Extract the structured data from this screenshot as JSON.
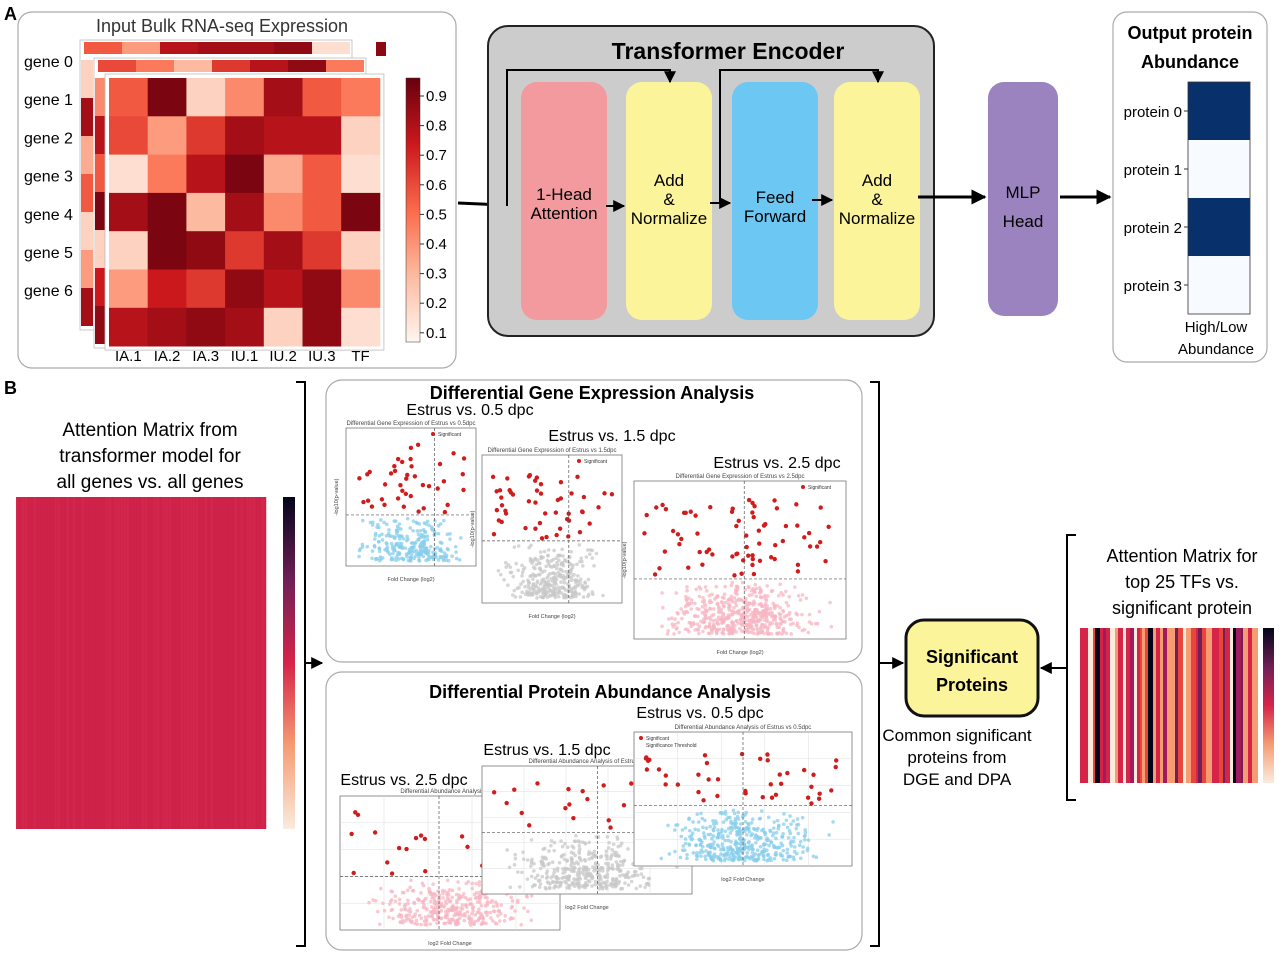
{
  "panel_a": {
    "label": "A",
    "heatmap": {
      "title": "Input Bulk RNA-seq Expression",
      "genes": [
        "gene 0",
        "gene 1",
        "gene 2",
        "gene 3",
        "gene 4",
        "gene 5",
        "gene 6"
      ],
      "columns": [
        "IA.1",
        "IA.2",
        "IA.3",
        "IU.1",
        "IU.2",
        "IU.3",
        "TF"
      ],
      "colorbar_ticks": [
        "0.9",
        "0.8",
        "0.7",
        "0.6",
        "0.5",
        "0.4",
        "0.3",
        "0.2",
        "0.1"
      ],
      "values": [
        [
          0.55,
          0.95,
          0.15,
          0.4,
          0.85,
          0.55,
          0.45
        ],
        [
          0.6,
          0.35,
          0.65,
          0.85,
          0.8,
          0.8,
          0.15
        ],
        [
          0.1,
          0.45,
          0.8,
          0.95,
          0.3,
          0.55,
          0.1
        ],
        [
          0.85,
          0.95,
          0.25,
          0.85,
          0.4,
          0.55,
          0.95
        ],
        [
          0.15,
          0.95,
          0.9,
          0.65,
          0.85,
          0.65,
          0.15
        ],
        [
          0.35,
          0.75,
          0.65,
          0.9,
          0.8,
          0.9,
          0.4
        ],
        [
          0.8,
          0.85,
          0.9,
          0.85,
          0.15,
          0.9,
          0.1
        ]
      ],
      "colors": {
        "low": "#fff5f0",
        "high": "#67000d"
      }
    },
    "encoder": {
      "title": "Transformer Encoder",
      "blocks": [
        {
          "lines": [
            "1-Head",
            "Attention"
          ],
          "color": "#f29a9e"
        },
        {
          "lines": [
            "Add",
            "&",
            "Normalize"
          ],
          "color": "#fbf49a"
        },
        {
          "lines": [
            "Feed",
            "Forward"
          ],
          "color": "#6cc7f2"
        },
        {
          "lines": [
            "Add",
            "&",
            "Normalize"
          ],
          "color": "#fbf49a"
        }
      ],
      "box_color": "#cccccc"
    },
    "mlp": {
      "lines": [
        "MLP",
        "Head"
      ],
      "color": "#9b83c0"
    },
    "output": {
      "title_lines": [
        "Output protein",
        "Abundance"
      ],
      "proteins": [
        "protein 0",
        "protein 1",
        "protein 2",
        "protein 3"
      ],
      "levels": [
        1,
        0,
        1,
        0
      ],
      "legend_lines": [
        "High/Low",
        "Abundance"
      ],
      "colors": {
        "high": "#08306b",
        "low": "#f7fbff"
      }
    }
  },
  "panel_b": {
    "label": "B",
    "attention_all": {
      "caption_lines": [
        "Attention Matrix from",
        "transformer model for",
        "all genes vs. all genes"
      ],
      "color": "#d0234a"
    },
    "dge": {
      "title": "Differential Gene Expression Analysis",
      "plots": [
        {
          "label": "Estrus vs. 0.5 dpc",
          "subtitle": "Differential Gene Expression of Estrus vs 0.5dpc",
          "xlabel": "Fold Change (log2)",
          "ylabel": "-log10(p-value)",
          "base_color": "#87ceeb",
          "legend": [
            "Significant"
          ]
        },
        {
          "label": "Estrus vs. 1.5 dpc",
          "subtitle": "Differential Gene Expression of Estrus vs 1.5dpc",
          "xlabel": "Fold Change (log2)",
          "ylabel": "-log10(p-value)",
          "base_color": "#c8c8c8",
          "legend": [
            "Significant"
          ]
        },
        {
          "label": "Estrus vs. 2.5 dpc",
          "subtitle": "Differential Gene Expression of Estrus vs 2.5dpc",
          "xlabel": "Fold Change (log2)",
          "ylabel": "-log10(p-value)",
          "base_color": "#f7b6c2",
          "legend": [
            "Significant"
          ]
        }
      ]
    },
    "dpa": {
      "title": "Differential Protein Abundance Analysis",
      "plots": [
        {
          "label": "Estrus vs. 0.5 dpc",
          "subtitle": "Differential Abundance Analysis of Estrus vs 0.5dpc",
          "xlabel": "log2 Fold Change",
          "base_color": "#87ceeb",
          "legend": [
            "Significant",
            "Significance Threshold"
          ]
        },
        {
          "label": "Estrus vs. 1.5 dpc",
          "subtitle": "Differential Abundance Analysis of Estrus vs",
          "xlabel": "log2 Fold Change",
          "base_color": "#c8c8c8",
          "legend": []
        },
        {
          "label": "Estrus vs. 2.5 dpc",
          "subtitle": "Differential Abundance Analysis of Es",
          "xlabel": "log2 Fold Change",
          "base_color": "#f7b6c2",
          "legend": []
        }
      ]
    },
    "sig_color": "#d01c1c",
    "significant": {
      "lines": [
        "Significant",
        "Proteins"
      ],
      "color": "#fbf49a",
      "caption_lines": [
        "Common significant",
        "proteins from",
        "DGE and DPA"
      ]
    },
    "attention_tf": {
      "caption_lines": [
        "Attention Matrix for",
        "top 25 TFs vs.",
        "significant protein"
      ]
    }
  }
}
